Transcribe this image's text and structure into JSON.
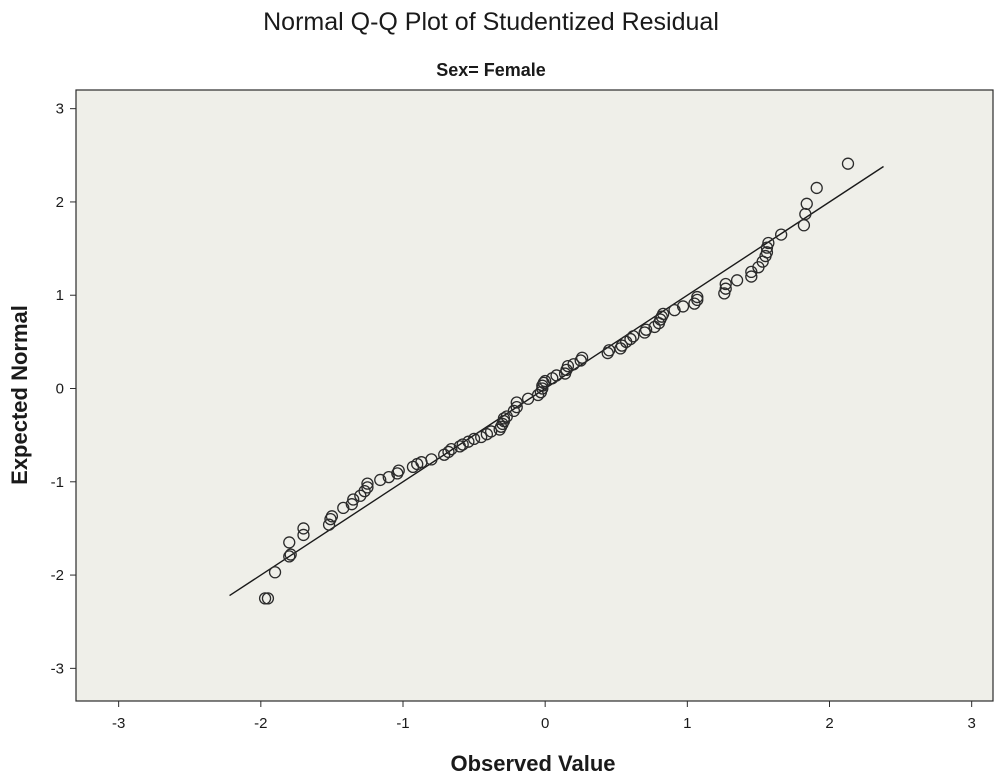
{
  "chart_data": {
    "type": "scatter",
    "title": "Normal Q-Q Plot of Studentized Residual",
    "subtitle": "Sex= Female",
    "xlabel": "Observed Value",
    "ylabel": "Expected Normal",
    "xlim": [
      -3.3,
      3.15
    ],
    "ylim": [
      -3.35,
      3.2
    ],
    "xticks": [
      -3,
      -2,
      -1,
      0,
      1,
      2,
      3
    ],
    "yticks": [
      -3,
      -2,
      -1,
      0,
      1,
      2,
      3
    ],
    "xtick_labels": [
      "-3",
      "-2",
      "-1",
      "0",
      "1",
      "2",
      "3"
    ],
    "ytick_labels": [
      "-3",
      "-2",
      "-1",
      "0",
      "1",
      "2",
      "3"
    ],
    "grid": false,
    "reference_line": {
      "x": [
        -2.22,
        2.38
      ],
      "y": [
        -2.22,
        2.38
      ]
    },
    "series": [
      {
        "name": "Studentized Residual",
        "marker": "open-circle",
        "points": [
          [
            -1.97,
            -2.25
          ],
          [
            -1.95,
            -2.25
          ],
          [
            -1.9,
            -1.97
          ],
          [
            -1.8,
            -1.8
          ],
          [
            -1.79,
            -1.78
          ],
          [
            -1.8,
            -1.65
          ],
          [
            -1.7,
            -1.57
          ],
          [
            -1.7,
            -1.5
          ],
          [
            -1.52,
            -1.46
          ],
          [
            -1.51,
            -1.4
          ],
          [
            -1.5,
            -1.37
          ],
          [
            -1.42,
            -1.28
          ],
          [
            -1.36,
            -1.24
          ],
          [
            -1.35,
            -1.19
          ],
          [
            -1.3,
            -1.15
          ],
          [
            -1.27,
            -1.1
          ],
          [
            -1.25,
            -1.06
          ],
          [
            -1.25,
            -1.02
          ],
          [
            -1.16,
            -0.98
          ],
          [
            -1.1,
            -0.95
          ],
          [
            -1.04,
            -0.91
          ],
          [
            -1.03,
            -0.88
          ],
          [
            -0.93,
            -0.84
          ],
          [
            -0.9,
            -0.81
          ],
          [
            -0.87,
            -0.79
          ],
          [
            -0.8,
            -0.76
          ],
          [
            -0.71,
            -0.71
          ],
          [
            -0.68,
            -0.68
          ],
          [
            -0.66,
            -0.65
          ],
          [
            -0.6,
            -0.62
          ],
          [
            -0.58,
            -0.6
          ],
          [
            -0.54,
            -0.57
          ],
          [
            -0.5,
            -0.54
          ],
          [
            -0.45,
            -0.52
          ],
          [
            -0.41,
            -0.49
          ],
          [
            -0.38,
            -0.46
          ],
          [
            -0.32,
            -0.44
          ],
          [
            -0.31,
            -0.41
          ],
          [
            -0.3,
            -0.38
          ],
          [
            -0.29,
            -0.35
          ],
          [
            -0.29,
            -0.32
          ],
          [
            -0.27,
            -0.3
          ],
          [
            -0.22,
            -0.24
          ],
          [
            -0.2,
            -0.2
          ],
          [
            -0.2,
            -0.15
          ],
          [
            -0.12,
            -0.11
          ],
          [
            -0.05,
            -0.07
          ],
          [
            -0.03,
            -0.04
          ],
          [
            -0.02,
            0.0
          ],
          [
            -0.02,
            0.03
          ],
          [
            -0.01,
            0.06
          ],
          [
            0.0,
            0.08
          ],
          [
            0.05,
            0.11
          ],
          [
            0.08,
            0.14
          ],
          [
            0.14,
            0.16
          ],
          [
            0.15,
            0.2
          ],
          [
            0.16,
            0.24
          ],
          [
            0.2,
            0.26
          ],
          [
            0.25,
            0.3
          ],
          [
            0.26,
            0.33
          ],
          [
            0.44,
            0.38
          ],
          [
            0.45,
            0.41
          ],
          [
            0.53,
            0.43
          ],
          [
            0.54,
            0.46
          ],
          [
            0.57,
            0.5
          ],
          [
            0.6,
            0.53
          ],
          [
            0.62,
            0.56
          ],
          [
            0.7,
            0.6
          ],
          [
            0.71,
            0.63
          ],
          [
            0.77,
            0.66
          ],
          [
            0.8,
            0.7
          ],
          [
            0.81,
            0.74
          ],
          [
            0.82,
            0.77
          ],
          [
            0.83,
            0.8
          ],
          [
            0.91,
            0.84
          ],
          [
            0.97,
            0.88
          ],
          [
            1.05,
            0.91
          ],
          [
            1.07,
            0.95
          ],
          [
            1.07,
            0.98
          ],
          [
            1.26,
            1.02
          ],
          [
            1.27,
            1.07
          ],
          [
            1.27,
            1.12
          ],
          [
            1.35,
            1.16
          ],
          [
            1.45,
            1.2
          ],
          [
            1.45,
            1.25
          ],
          [
            1.5,
            1.3
          ],
          [
            1.53,
            1.36
          ],
          [
            1.55,
            1.42
          ],
          [
            1.56,
            1.46
          ],
          [
            1.56,
            1.51
          ],
          [
            1.57,
            1.56
          ],
          [
            1.66,
            1.65
          ],
          [
            1.82,
            1.75
          ],
          [
            1.83,
            1.87
          ],
          [
            1.84,
            1.98
          ],
          [
            1.91,
            2.15
          ],
          [
            2.13,
            2.41
          ]
        ]
      }
    ]
  }
}
